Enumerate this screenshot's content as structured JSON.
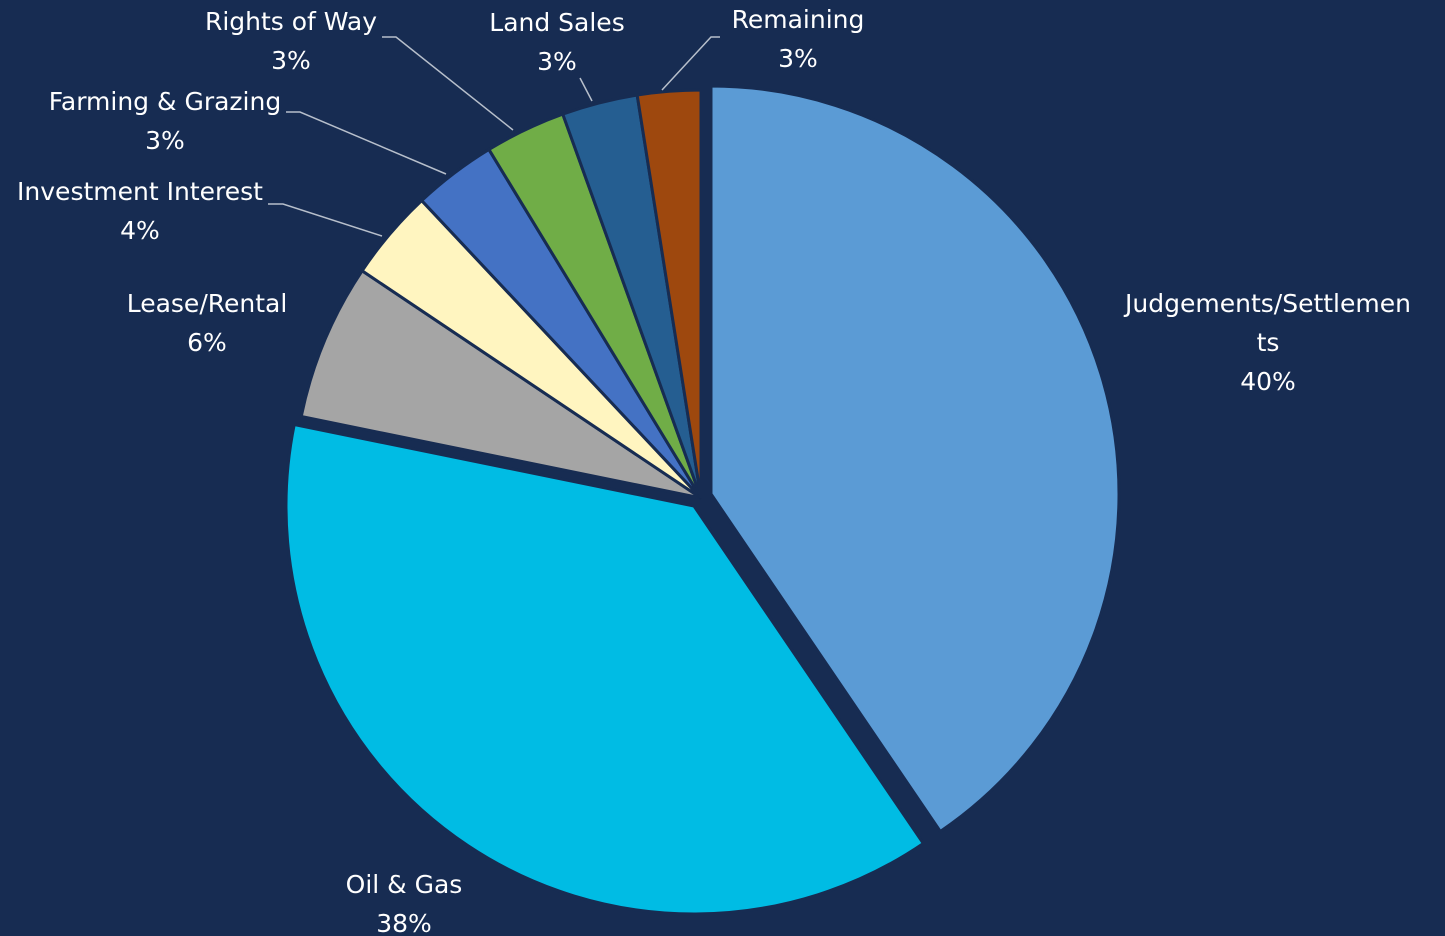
{
  "chart_data": {
    "type": "pie",
    "title": "",
    "slices": [
      {
        "name": "Judgements/Settlements",
        "label_lines": [
          "Judgements/Settlemen",
          "ts"
        ],
        "pct_label": "40%",
        "value": 40.5,
        "color": "#5b9bd5"
      },
      {
        "name": "Oil & Gas",
        "label_lines": [
          "Oil & Gas"
        ],
        "pct_label": "38%",
        "value": 37.7,
        "color": "#00bce4"
      },
      {
        "name": "Lease/Rental",
        "label_lines": [
          "Lease/Rental"
        ],
        "pct_label": "6%",
        "value": 6.2,
        "color": "#a5a5a5"
      },
      {
        "name": "Investment Interest",
        "label_lines": [
          "Investment Interest"
        ],
        "pct_label": "4%",
        "value": 3.6,
        "color": "#fff5c0"
      },
      {
        "name": "Farming & Grazing",
        "label_lines": [
          "Farming & Grazing"
        ],
        "pct_label": "3%",
        "value": 3.3,
        "color": "#4472c4"
      },
      {
        "name": "Rights of Way",
        "label_lines": [
          "Rights of Way"
        ],
        "pct_label": "3%",
        "value": 3.2,
        "color": "#70ad47"
      },
      {
        "name": "Land Sales",
        "label_lines": [
          "Land Sales"
        ],
        "pct_label": "3%",
        "value": 3.0,
        "color": "#255e91"
      },
      {
        "name": "Remaining",
        "label_lines": [
          "Remaining"
        ],
        "pct_label": "3%",
        "value": 2.5,
        "color": "#9e480e"
      }
    ],
    "start_angle_deg": 0,
    "direction": "clockwise",
    "exploded": true,
    "legend": "none"
  }
}
